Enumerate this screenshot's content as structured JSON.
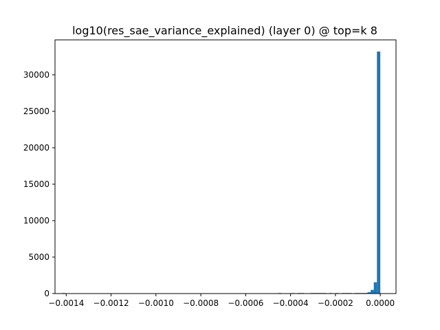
{
  "chart_data": {
    "type": "bar",
    "title": "log10(res_sae_variance_explained) (layer 0) @ top=k 8",
    "xlabel": "",
    "ylabel": "",
    "xlim": [
      -0.00145,
      7e-05
    ],
    "ylim": [
      0,
      34800
    ],
    "grid": false,
    "bar_color": "#1f77b4",
    "x_ticks": [
      {
        "value": -0.0014,
        "label": "−0.0014"
      },
      {
        "value": -0.0012,
        "label": "−0.0012"
      },
      {
        "value": -0.001,
        "label": "−0.0010"
      },
      {
        "value": -0.0008,
        "label": "−0.0008"
      },
      {
        "value": -0.0006,
        "label": "−0.0006"
      },
      {
        "value": -0.0004,
        "label": "−0.0004"
      },
      {
        "value": -0.0002,
        "label": "−0.0002"
      },
      {
        "value": 0.0,
        "label": "0.0000"
      }
    ],
    "y_ticks": [
      {
        "value": 0,
        "label": "0"
      },
      {
        "value": 5000,
        "label": "5000"
      },
      {
        "value": 10000,
        "label": "10000"
      },
      {
        "value": 15000,
        "label": "15000"
      },
      {
        "value": 20000,
        "label": "20000"
      },
      {
        "value": 25000,
        "label": "25000"
      },
      {
        "value": 30000,
        "label": "30000"
      }
    ],
    "bins": [
      {
        "x0": -0.001419,
        "x1": -0.001405,
        "count": 1
      },
      {
        "x0": -0.000455,
        "x1": -0.000441,
        "count": 3
      },
      {
        "x0": -0.000397,
        "x1": -0.000383,
        "count": 3
      },
      {
        "x0": -0.000369,
        "x1": -0.000355,
        "count": 4
      },
      {
        "x0": -0.000355,
        "x1": -0.000341,
        "count": 4
      },
      {
        "x0": -0.000312,
        "x1": -0.000298,
        "count": 5
      },
      {
        "x0": -0.000298,
        "x1": -0.000284,
        "count": 5
      },
      {
        "x0": -0.000284,
        "x1": -0.00027,
        "count": 6
      },
      {
        "x0": -0.00027,
        "x1": -0.000256,
        "count": 6
      },
      {
        "x0": -0.000256,
        "x1": -0.000242,
        "count": 7
      },
      {
        "x0": -0.000227,
        "x1": -0.000213,
        "count": 8
      },
      {
        "x0": -0.000199,
        "x1": -0.000185,
        "count": 10
      },
      {
        "x0": -0.000171,
        "x1": -0.000157,
        "count": 12
      },
      {
        "x0": -0.000157,
        "x1": -0.000143,
        "count": 14
      },
      {
        "x0": -0.000143,
        "x1": -0.000128,
        "count": 15
      },
      {
        "x0": -0.000114,
        "x1": -0.0001,
        "count": 20
      },
      {
        "x0": -0.0001,
        "x1": -8.6e-05,
        "count": 25
      },
      {
        "x0": -8.6e-05,
        "x1": -7.2e-05,
        "count": 40
      },
      {
        "x0": -7.2e-05,
        "x1": -5.7e-05,
        "count": 80
      },
      {
        "x0": -5.7e-05,
        "x1": -4.3e-05,
        "count": 180
      },
      {
        "x0": -4.3e-05,
        "x1": -2.9e-05,
        "count": 500
      },
      {
        "x0": -2.9e-05,
        "x1": -1.5e-05,
        "count": 1550
      },
      {
        "x0": -1.5e-05,
        "x1": 0.0,
        "count": 33200
      }
    ]
  }
}
